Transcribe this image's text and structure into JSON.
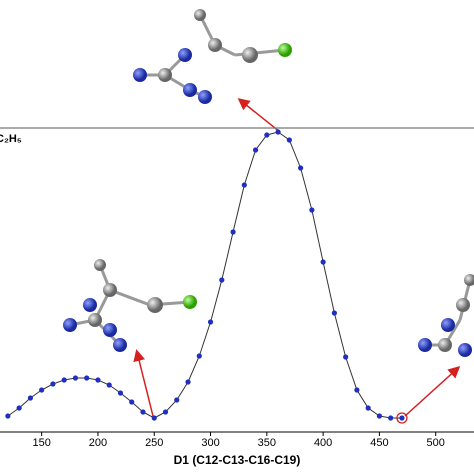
{
  "chart_data": {
    "type": "line",
    "x_label": "D1 (C12-C13-C16-C19)",
    "annotation": "C₂H₅",
    "x": [
      120,
      130,
      140,
      150,
      160,
      170,
      180,
      190,
      200,
      210,
      220,
      230,
      240,
      250,
      260,
      270,
      280,
      290,
      300,
      310,
      320,
      330,
      340,
      350,
      360,
      370,
      380,
      390,
      400,
      410,
      420,
      430,
      440,
      450,
      460,
      470
    ],
    "series": [
      {
        "color": "#1f2fbf",
        "values": [
          1.4,
          2.2,
          3.2,
          4.0,
          4.6,
          5.0,
          5.2,
          5.2,
          5.0,
          4.5,
          3.7,
          2.8,
          1.8,
          1.2,
          1.8,
          3.0,
          4.8,
          7.4,
          10.8,
          15.0,
          19.8,
          24.5,
          28.0,
          29.5,
          29.8,
          29.0,
          26.2,
          22.0,
          16.8,
          11.7,
          7.3,
          4.0,
          2.2,
          1.4,
          1.2,
          1.2
        ]
      }
    ],
    "reference_line": 30.2,
    "xlim": [
      113,
      534
    ],
    "ylim": [
      0,
      30
    ],
    "xticks": [
      150,
      200,
      250,
      300,
      350,
      400,
      450,
      500
    ]
  }
}
